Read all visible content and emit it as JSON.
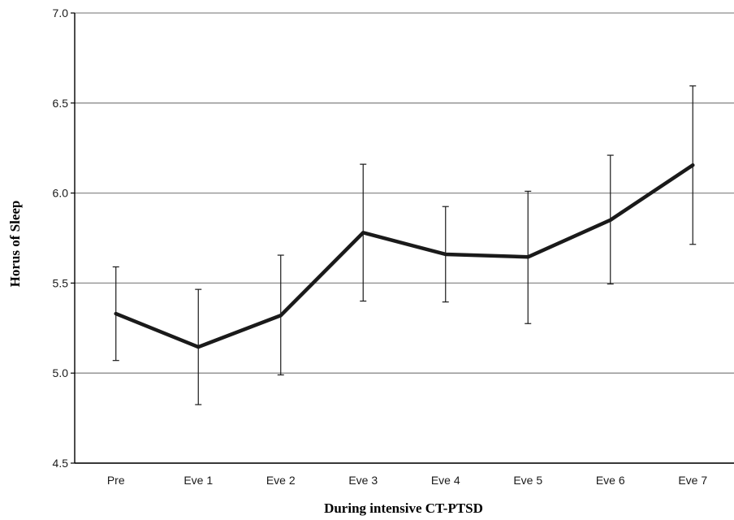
{
  "chart_data": {
    "type": "line",
    "title": "",
    "xlabel": "During intensive CT-PTSD",
    "ylabel": "Horus of Sleep",
    "categories": [
      "Pre",
      "Eve 1",
      "Eve 2",
      "Eve 3",
      "Eve 4",
      "Eve 5",
      "Eve 6",
      "Eve 7"
    ],
    "series": [
      {
        "values": [
          5.33,
          5.145,
          5.32,
          5.78,
          5.66,
          5.645,
          5.85,
          6.155
        ],
        "error_low": [
          5.07,
          4.825,
          4.99,
          5.4,
          5.395,
          5.275,
          5.495,
          5.715
        ],
        "error_high": [
          5.59,
          5.465,
          5.655,
          6.16,
          5.925,
          6.01,
          6.21,
          6.595
        ]
      }
    ],
    "ylim": [
      4.5,
      7.0
    ],
    "yticks": [
      "4.5",
      "5.0",
      "5.5",
      "6.0",
      "6.5",
      "7.0"
    ],
    "grid": true,
    "legend": "none",
    "colors": {
      "line": "#1a1a1a",
      "grid": "#8c8c8c",
      "axis": "#000000"
    }
  }
}
